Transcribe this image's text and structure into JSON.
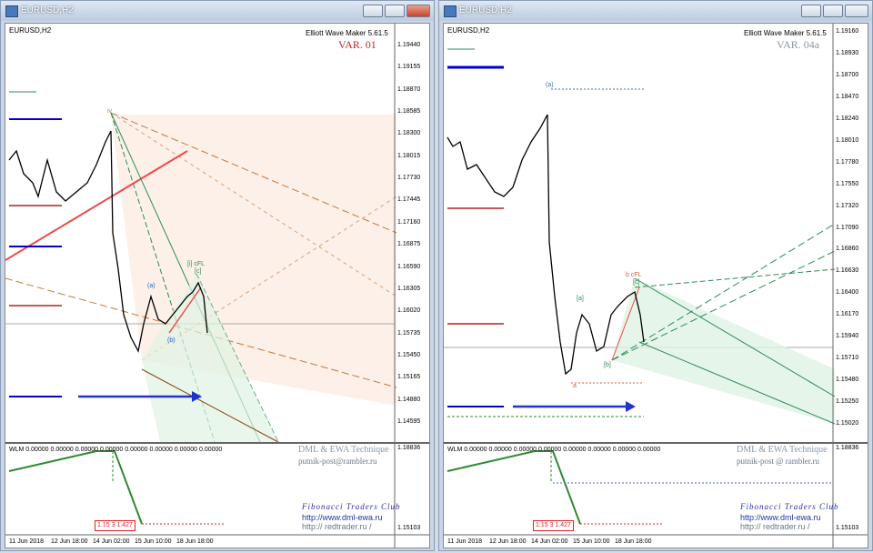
{
  "windows": [
    {
      "title": "EURUSD,H2",
      "symbol": "EURUSD,H2",
      "indicator": "Elliott Wave Maker 5.61.5",
      "variant": "VAR. 01",
      "price_labels": [
        "1.19440",
        "1.19155",
        "1.18870",
        "1.18585",
        "1.18300",
        "1.18015",
        "1.17730",
        "1.17445",
        "1.17160",
        "1.16875",
        "1.16590",
        "1.16305",
        "1.16020",
        "1.15735",
        "1.15450",
        "1.15165",
        "1.14880",
        "1.14595"
      ],
      "wave_labels": [
        "iv",
        "[i] cFL",
        "[c]",
        "(a)",
        "(b)"
      ],
      "sub": {
        "header": "WLM 0.00000 0.00000 0.00000 0.00000 0.00000 0.00000 0.00000 0.00000",
        "brand": "DML & EWA Technique",
        "email": "putnik-post@rambler.ru",
        "club": "Fibonacci Traders Club",
        "url1": "http://www.dml-ewa.ru",
        "url2": "http:// redtrader.ru /",
        "box": "1.15 3 1.427",
        "price_labels": [
          "1.18836",
          "1.15103"
        ]
      },
      "dates": [
        "11 Jun 2018",
        "12 Jun 18:00",
        "14 Jun 02:00",
        "15 Jun 10:00",
        "18 Jun 18:00"
      ]
    },
    {
      "title": "EURUSD,H2",
      "symbol": "EURUSD,H2",
      "indicator": "Elliott Wave Maker 5.61.5",
      "variant": "VAR. 04a",
      "price_labels": [
        "1.19160",
        "1.18930",
        "1.18700",
        "1.18470",
        "1.18240",
        "1.18010",
        "1.17780",
        "1.17550",
        "1.17320",
        "1.17090",
        "1.16860",
        "1.16630",
        "1.16400",
        "1.16170",
        "1.15940",
        "1.15710",
        "1.15480",
        "1.15250",
        "1.15020"
      ],
      "wave_labels": [
        "(a)",
        "b cFL",
        "[c]",
        "[a]",
        "[b]",
        "a"
      ],
      "sub": {
        "header": "WLM 0.00000 0.00000 0.00000 0.00000 0.00000 0.00000 0.00000 0.00000",
        "brand": "DML & EWA Technique",
        "email": "putnik-post @ rambler.ru",
        "club": "Fibonacci Traders Club",
        "url1": "http://www.dml-ewa.ru",
        "url2": "http:// redtrader.ru /",
        "box": "1.15 3 1.427",
        "price_labels": [
          "1.18836",
          "1.15103"
        ]
      },
      "dates": [
        "11 Jun 2018",
        "12 Jun 18:00",
        "14 Jun 02:00",
        "15 Jun 10:00",
        "18 Jun 18:00"
      ]
    }
  ]
}
